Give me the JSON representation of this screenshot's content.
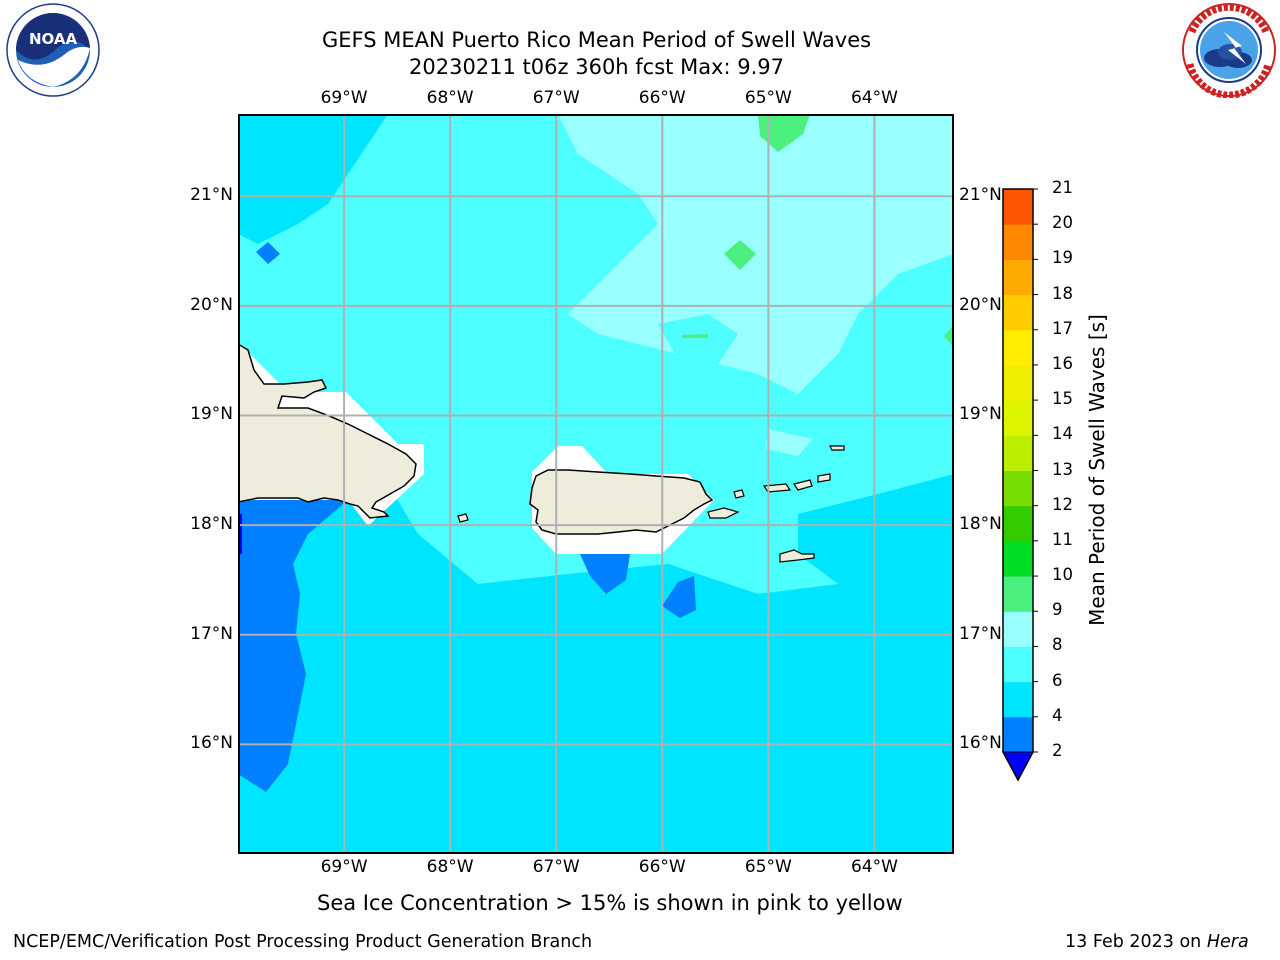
{
  "title": {
    "line1": "GEFS MEAN Puerto Rico Mean Period of Swell Waves",
    "line2": "20230211 t06z 360h fcst   Max: 9.97"
  },
  "map": {
    "lon_labels": [
      "69°W",
      "68°W",
      "67°W",
      "66°W",
      "65°W",
      "64°W"
    ],
    "lat_labels": [
      "21°N",
      "20°N",
      "19°N",
      "18°N",
      "17°N",
      "16°N"
    ],
    "lon_range": [
      -70,
      -63.25
    ],
    "lat_range": [
      15,
      21.75
    ],
    "gridlines": true,
    "field": "Mean Period of Swell Waves",
    "land_color": "#eeeddc",
    "dominant_range": "6-8 s over most of the domain, 2-4 s along the western edge south of Hispaniola and in small patches south of Puerto Rico, 8-10 s patches in the northeast"
  },
  "colorbar": {
    "title": "Mean Period of Swell Waves [s]",
    "ticks": [
      "2",
      "4",
      "6",
      "8",
      "9",
      "10",
      "11",
      "12",
      "13",
      "14",
      "15",
      "16",
      "17",
      "18",
      "19",
      "20",
      "21"
    ],
    "colors": [
      "#0080ff",
      "#00e5ff",
      "#4dffff",
      "#99ffff",
      "#4cf07f",
      "#00dd22",
      "#33cc00",
      "#77dd00",
      "#bbee00",
      "#ddf500",
      "#eeee00",
      "#ffee00",
      "#ffcc00",
      "#ffaa00",
      "#ff8800",
      "#ff5500",
      "#ff3300",
      "#ff0000"
    ],
    "under_color": "#0000ff"
  },
  "caption": "Sea Ice Concentration > 15% is shown in pink to yellow",
  "footer": {
    "left": "NCEP/EMC/Verification Post Processing Product Generation Branch",
    "right_prefix": "13 Feb 2023 on ",
    "right_host": "Hera"
  },
  "logos": {
    "noaa": {
      "text": "NOAA",
      "icon": "noaa-logo"
    },
    "nws": {
      "icon": "nws-logo"
    }
  }
}
